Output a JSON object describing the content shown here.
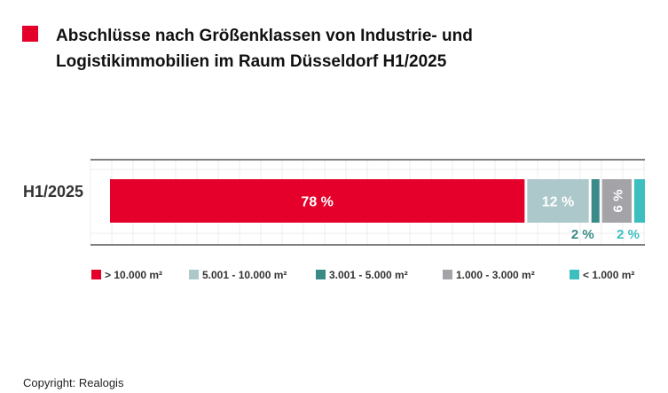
{
  "title": "Abschlüsse nach Größenklassen von Industrie- und Logistikimmobilien im Raum Düsseldorf H1/2025",
  "title_marker_color": "#e4002b",
  "copyright": "Copyright: Realogis",
  "chart_data": {
    "type": "bar",
    "orientation": "horizontal",
    "stacked": true,
    "unit": "%",
    "categories": [
      "H1/2025"
    ],
    "series": [
      {
        "name": "> 10.000 m²",
        "values": [
          78
        ],
        "label": "78 %",
        "color": "#e4002b"
      },
      {
        "name": "5.001 - 10.000 m²",
        "values": [
          12
        ],
        "label": "12 %",
        "color": "#adc8ca"
      },
      {
        "name": "3.001 - 5.000 m²",
        "values": [
          2
        ],
        "label": "2 %",
        "color": "#3a8a87"
      },
      {
        "name": "1.000 - 3.000 m²",
        "values": [
          6
        ],
        "label": "6 %",
        "color": "#a3a3a8"
      },
      {
        "name": "< 1.000 m²",
        "values": [
          2
        ],
        "label": "2 %",
        "color": "#3dbfbf"
      }
    ],
    "xlim": [
      0,
      100
    ],
    "grid": true,
    "legend_position": "bottom"
  }
}
